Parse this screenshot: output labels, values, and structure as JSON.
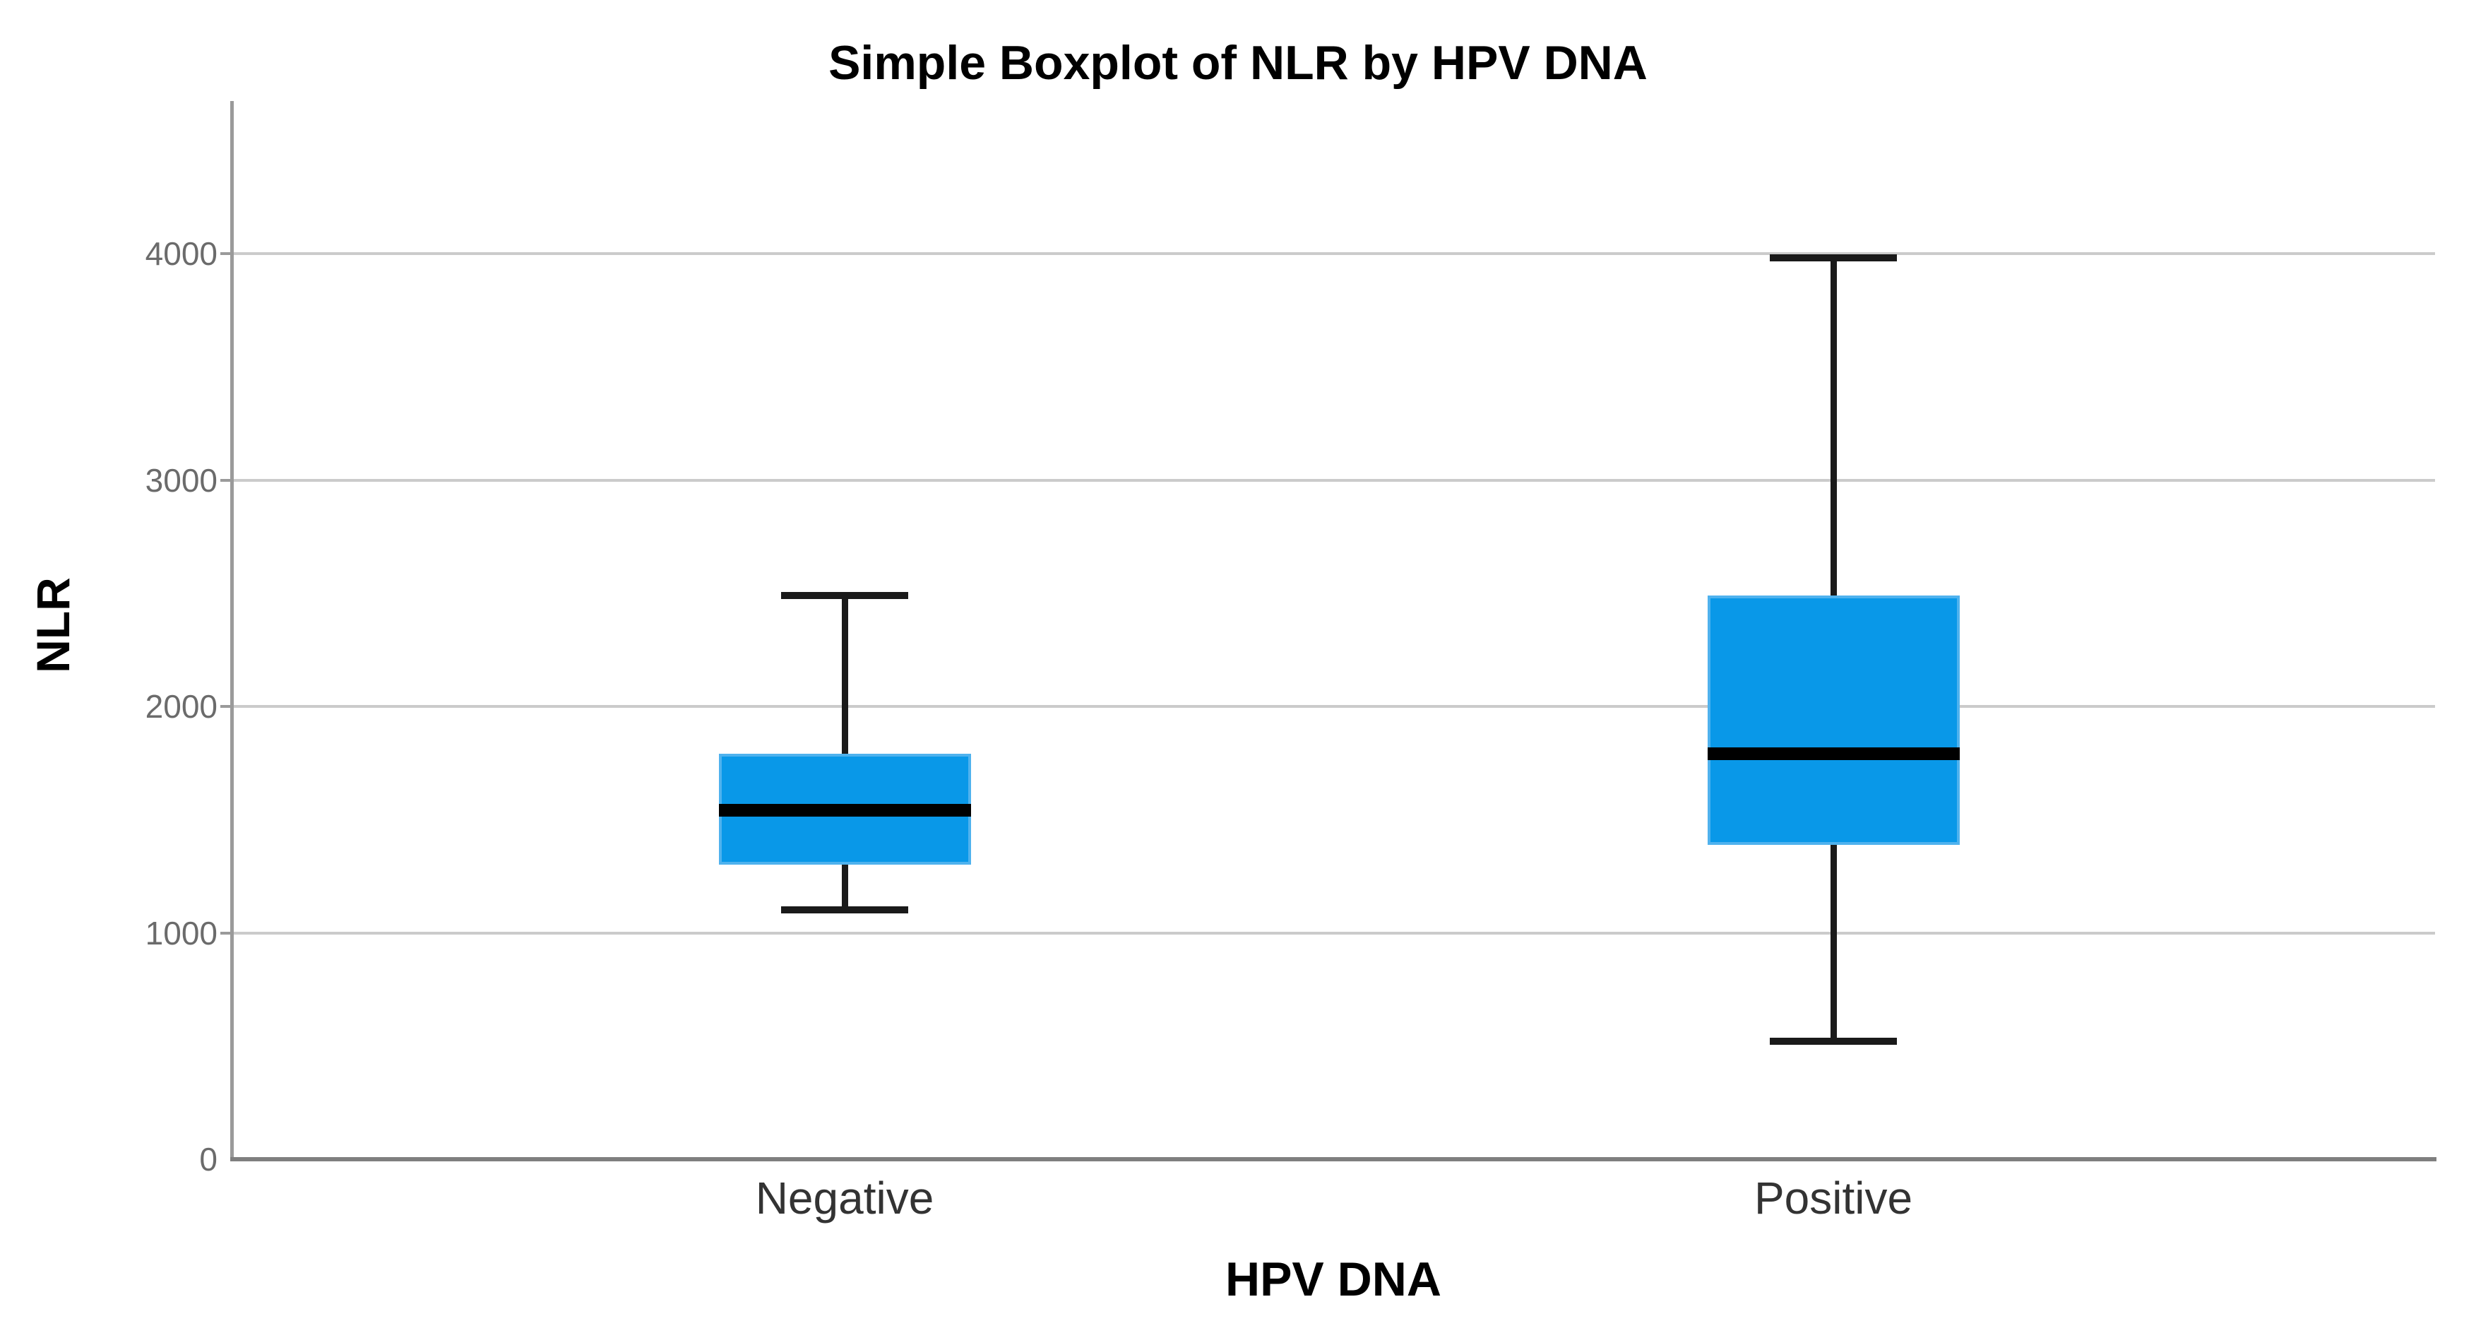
{
  "chart_data": {
    "type": "boxplot",
    "title": "Simple Boxplot of NLR by HPV DNA",
    "xlabel": "HPV DNA",
    "ylabel": "NLR",
    "categories": [
      "Negative",
      "Positive"
    ],
    "y_ticks": [
      0,
      1000,
      2000,
      3000,
      4000
    ],
    "ylim": [
      0,
      4670
    ],
    "grid": true,
    "legend_position": "none",
    "series": [
      {
        "category": "Negative",
        "min": 1100,
        "q1": 1300,
        "median": 1540,
        "q3": 1790,
        "max": 2490,
        "outliers": []
      },
      {
        "category": "Positive",
        "min": 520,
        "q1": 1390,
        "median": 1790,
        "q3": 2490,
        "max": 3980,
        "outliers": []
      }
    ],
    "colors": {
      "box_fill": "#0998e8",
      "box_edge": "#4fb2ee",
      "median": "#000000",
      "whisker": "#1a1a1a",
      "gridline": "#cbcbcb",
      "y_axis_line": "#9a9a9a",
      "x_axis_line": "#7f7f7f",
      "tick_label": "#6b6b6b",
      "category_label": "#333333",
      "title": "#000000"
    }
  }
}
